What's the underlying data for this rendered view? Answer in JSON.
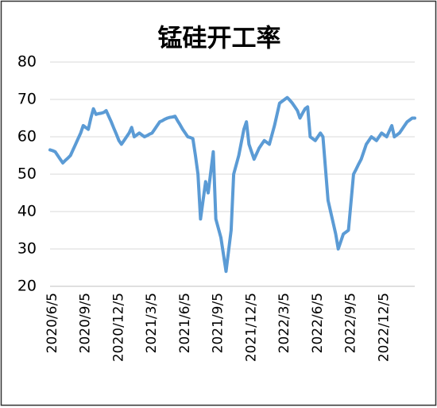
{
  "chart_data": {
    "type": "line",
    "title": "锰硅开工率",
    "categories": [
      "2020/6/5",
      null,
      null,
      null,
      null,
      null,
      null,
      null,
      null,
      null,
      null,
      null,
      null,
      "2020/9/5",
      null,
      null,
      null,
      null,
      null,
      null,
      null,
      null,
      null,
      null,
      null,
      null,
      "2020/12/5",
      null,
      null,
      null,
      null,
      null,
      null,
      null,
      null,
      null,
      null,
      null,
      null,
      "2021/3/5",
      null,
      null,
      null,
      null,
      null,
      null,
      null,
      null,
      null,
      null,
      null,
      null,
      "2021/6/5",
      null,
      null,
      null,
      null,
      null,
      null,
      null,
      null,
      null,
      null,
      null,
      null,
      "2021/9/5",
      null,
      null,
      null,
      null,
      null,
      null,
      null,
      null,
      null,
      null,
      null,
      null,
      "2021/12/5",
      null,
      null,
      null,
      null,
      null,
      null,
      null,
      null,
      null,
      null,
      null,
      null,
      "2022/3/5",
      null,
      null,
      null,
      null,
      null,
      null,
      null,
      null,
      null,
      null,
      null,
      null,
      "2022/6/5",
      null,
      null,
      null,
      null,
      null,
      null,
      null,
      null,
      null,
      null,
      null,
      null,
      "2022/9/5",
      null,
      null,
      null,
      null,
      null,
      null,
      null,
      null,
      null,
      null,
      null,
      null,
      "2022/12/5",
      null,
      null,
      null,
      null,
      null,
      null,
      null,
      null,
      null,
      null,
      null,
      null,
      null
    ],
    "values": [
      56.5,
      56.3,
      56,
      55,
      54,
      53,
      53.7,
      54.3,
      55,
      56.5,
      58,
      59.5,
      61,
      63,
      62.5,
      62,
      65,
      67.5,
      66,
      66.2,
      66.3,
      66.5,
      67,
      65.5,
      64,
      62.3,
      60.7,
      59,
      58,
      59,
      60,
      61,
      62.5,
      60,
      60.5,
      61,
      60.5,
      60,
      60.3,
      60.7,
      61,
      62,
      63,
      64,
      64.3,
      64.7,
      65,
      65.2,
      65.3,
      65.5,
      64.3,
      63.2,
      62,
      61,
      60,
      59.8,
      59.5,
      55,
      50,
      38,
      43,
      48,
      45,
      50.5,
      56,
      38,
      35.5,
      33,
      28.5,
      24,
      29.5,
      35,
      50,
      52.5,
      55,
      58.5,
      62,
      64,
      58,
      56,
      54,
      55.5,
      57,
      58,
      59,
      58.5,
      58,
      60.5,
      63,
      66,
      69,
      69.5,
      70,
      70.5,
      69.8,
      69,
      68,
      67,
      65,
      66.3,
      67.5,
      68,
      60,
      59.5,
      59,
      60,
      61,
      60,
      51.5,
      43,
      40,
      37,
      34,
      30,
      32,
      34,
      34.5,
      35,
      42.5,
      50,
      51.3,
      52.7,
      54,
      56,
      58,
      59,
      60,
      59.5,
      59,
      60,
      61,
      60.5,
      60,
      61.5,
      63,
      60,
      60.5,
      61,
      62,
      63,
      64,
      64.5,
      65,
      65
    ],
    "color": "#5b9bd5",
    "ylim": [
      20,
      80
    ],
    "yticks": [
      20,
      30,
      40,
      50,
      60,
      70,
      80
    ],
    "grid": true
  }
}
